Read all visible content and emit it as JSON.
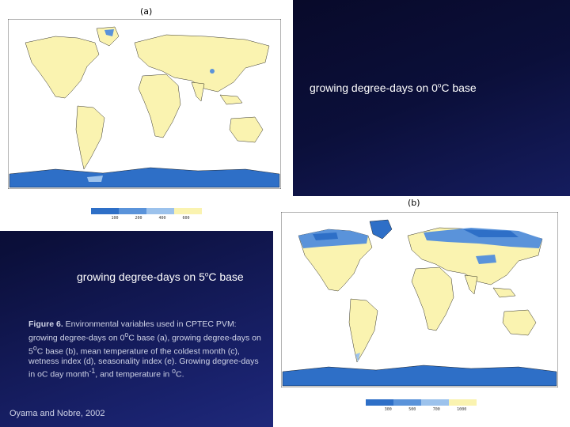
{
  "panel_a": {
    "label": "(a)",
    "legend_ticks": [
      "100",
      "200",
      "400",
      "600"
    ],
    "colors": {
      "ocean": "#ffffff",
      "land": "#faf3b0",
      "cold1": "#2e6fc7",
      "cold2": "#5a93da",
      "cold3": "#9cc2ec"
    }
  },
  "panel_b": {
    "label": "(b)",
    "legend_ticks": [
      "300",
      "500",
      "700",
      "1000"
    ]
  },
  "caption_a": {
    "text": "growing degree-days on 0",
    "sup": "o",
    "suffix": "C base"
  },
  "caption_b": {
    "text": "growing degree-days on 5",
    "sup": "o",
    "suffix": "C base"
  },
  "figure_caption": {
    "label": "Figure 6.",
    "line1": " Environmental variables used in CPTEC PVM: growing degree-days on 0",
    "sup1": "o",
    "line2": "C base (a), growing degree-days on 5",
    "sup2": "o",
    "line3": "C base (b), mean temperature of the coldest month (c), wetness index (d), seasonality index (e). Growing degree-days in oC day month",
    "sup3": "-1",
    "line4": ", and temperature in ",
    "sup4": "o",
    "line5": "C."
  },
  "citation": "Oyama and Nobre, 2002"
}
